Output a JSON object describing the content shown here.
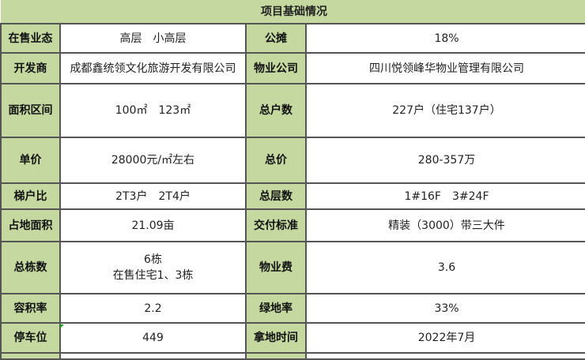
{
  "title": "项目基础情况",
  "rows": [
    {
      "l1": "在售业态",
      "v1": "高层　小高层",
      "l2": "公摊",
      "v2": "18%"
    },
    {
      "l1": "开发商",
      "v1": "成都鑫统领文化旅游开发有限公司",
      "l2": "物业公司",
      "v2": "四川悦领峰华物业管理有限公司"
    },
    {
      "l1": "面积区间",
      "v1": "100㎡　123㎡",
      "l2": "总户数",
      "v2": "227户（住宅137户）"
    },
    {
      "l1": "单价",
      "v1": "28000元/㎡左右",
      "l2": "总价",
      "v2": "280-357万"
    },
    {
      "l1": "梯户比",
      "v1": "2T3户　2T4户",
      "l2": "总层数",
      "v2": "1#16F　3#24F"
    },
    {
      "l1": "占地面积",
      "v1": "21.09亩",
      "l2": "交付标准",
      "v2": "精装（3000）带三大件"
    },
    {
      "l1": "总栋数",
      "v1": "6栋",
      "v1b": "在售住宅1、3栋",
      "l2": "物业费",
      "v2": "3.6"
    },
    {
      "l1": "容积率",
      "v1": "2.2",
      "l2": "绿地率",
      "v2": "33%"
    },
    {
      "l1": "停车位",
      "v1": "449",
      "l2": "拿地时间",
      "v2": "2022年7月"
    }
  ]
}
